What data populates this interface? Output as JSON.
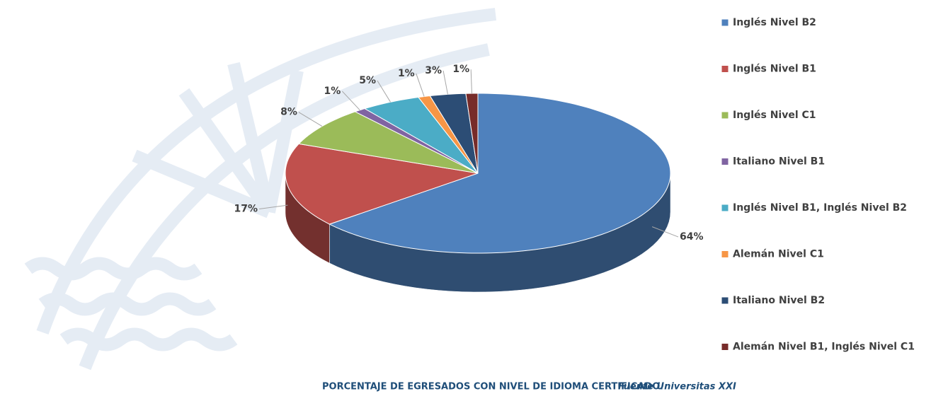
{
  "chart_data": {
    "type": "pie",
    "categories": [
      "Inglés Nivel B2",
      "Inglés Nivel B1",
      "Inglés Nivel C1",
      "Italiano Nivel B1",
      "Inglés Nivel B1, Inglés Nivel B2",
      "Alemán Nivel C1",
      "Italiano Nivel B2",
      "Alemán Nivel B1, Inglés Nivel C1"
    ],
    "values": [
      64,
      17,
      8,
      1,
      5,
      1,
      3,
      1
    ],
    "value_labels": [
      "64%",
      "17%",
      "8%",
      "1%",
      "5%",
      "1%",
      "3%",
      "1%"
    ],
    "colors": [
      "#4f81bd",
      "#c0504d",
      "#9bbb59",
      "#8064a2",
      "#4bacc6",
      "#f79646",
      "#2c4d75",
      "#772c2a"
    ],
    "title": "PORCENTAJE DE EGRESADOS CON NIVEL DE IDIOMA CERTIFICADO.",
    "source": "Fuente Universitas XXI",
    "legend": "right"
  }
}
